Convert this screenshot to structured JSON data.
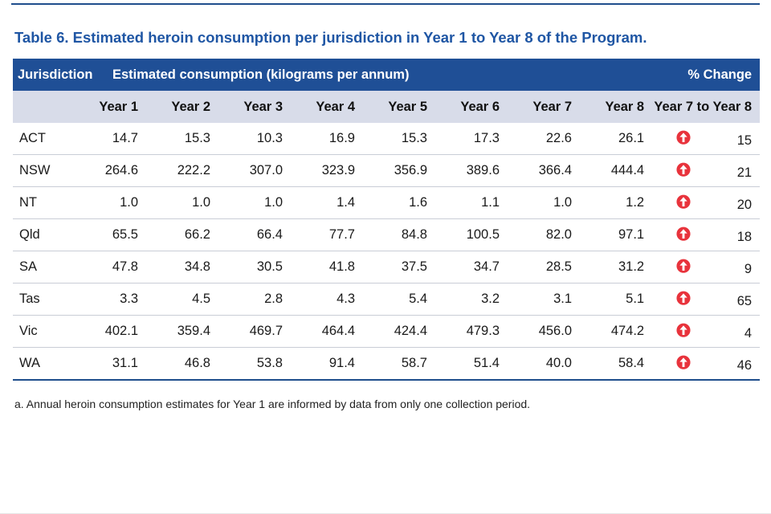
{
  "title": "Table 6. Estimated heroin consumption per jurisdiction in Year 1 to Year 8 of the Program.",
  "header": {
    "jurisdiction": "Jurisdiction",
    "estimated": "Estimated consumption (kilograms per annum)",
    "change": "% Change",
    "years": [
      "Year 1",
      "Year 2",
      "Year 3",
      "Year 4",
      "Year 5",
      "Year 6",
      "Year 7",
      "Year 8"
    ],
    "change_sub": "Year 7 to Year 8"
  },
  "rows": [
    {
      "jurisdiction": "ACT",
      "values": [
        "14.7",
        "15.3",
        "10.3",
        "16.9",
        "15.3",
        "17.3",
        "22.6",
        "26.1"
      ],
      "change": "15",
      "direction": "up"
    },
    {
      "jurisdiction": "NSW",
      "values": [
        "264.6",
        "222.2",
        "307.0",
        "323.9",
        "356.9",
        "389.6",
        "366.4",
        "444.4"
      ],
      "change": "21",
      "direction": "up"
    },
    {
      "jurisdiction": "NT",
      "values": [
        "1.0",
        "1.0",
        "1.0",
        "1.4",
        "1.6",
        "1.1",
        "1.0",
        "1.2"
      ],
      "change": "20",
      "direction": "up"
    },
    {
      "jurisdiction": "Qld",
      "values": [
        "65.5",
        "66.2",
        "66.4",
        "77.7",
        "84.8",
        "100.5",
        "82.0",
        "97.1"
      ],
      "change": "18",
      "direction": "up"
    },
    {
      "jurisdiction": "SA",
      "values": [
        "47.8",
        "34.8",
        "30.5",
        "41.8",
        "37.5",
        "34.7",
        "28.5",
        "31.2"
      ],
      "change": "9",
      "direction": "up"
    },
    {
      "jurisdiction": "Tas",
      "values": [
        "3.3",
        "4.5",
        "2.8",
        "4.3",
        "5.4",
        "3.2",
        "3.1",
        "5.1"
      ],
      "change": "65",
      "direction": "up"
    },
    {
      "jurisdiction": "Vic",
      "values": [
        "402.1",
        "359.4",
        "469.7",
        "464.4",
        "424.4",
        "479.3",
        "456.0",
        "474.2"
      ],
      "change": "4",
      "direction": "up"
    },
    {
      "jurisdiction": "WA",
      "values": [
        "31.1",
        "46.8",
        "53.8",
        "91.4",
        "58.7",
        "51.4",
        "40.0",
        "58.4"
      ],
      "change": "46",
      "direction": "up"
    }
  ],
  "footnote": "a.  Annual heroin consumption estimates for Year 1 are informed by data from only one collection period.",
  "colors": {
    "header_bg": "#1f4f96",
    "subheader_bg": "#d8dce9",
    "title": "#1f56a4",
    "increase_arrow": "#e8333c"
  },
  "icons": {
    "increase": "up-arrow-icon"
  }
}
